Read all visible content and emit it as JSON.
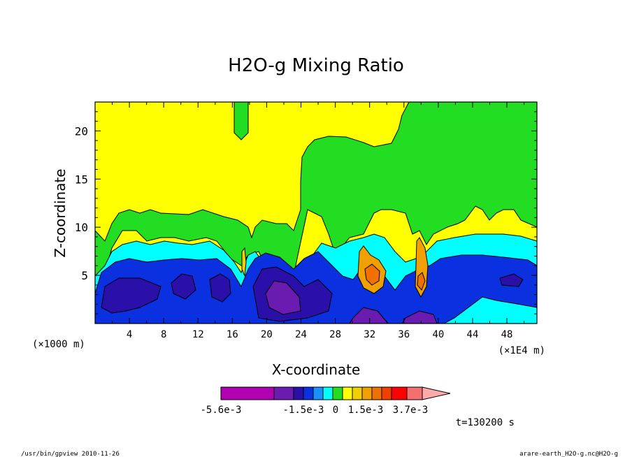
{
  "chart_data": {
    "type": "heatmap",
    "title": "H2O-g Mixing Ratio",
    "xlabel": "X-coordinate",
    "ylabel": "Z-coordinate",
    "x_unit_left": "(×1000 m)",
    "x_unit_right": "(×1E4 m)",
    "xlim": [
      0,
      51.5
    ],
    "ylim": [
      0,
      23
    ],
    "x_ticks": [
      4,
      8,
      12,
      16,
      20,
      24,
      28,
      32,
      36,
      40,
      44,
      48
    ],
    "y_ticks": [
      5,
      10,
      15,
      20
    ],
    "colorbar": {
      "colors": [
        "#b000b0",
        "#6a1bb0",
        "#2a10a8",
        "#0a30e0",
        "#1a90ff",
        "#00ffff",
        "#22dd22",
        "#ffff00",
        "#f0d000",
        "#f0a000",
        "#f07000",
        "#f04000",
        "#ff0000",
        "#f47070",
        "#ffaaaa"
      ],
      "labels": [
        "-5.6e-3",
        "-1.5e-3",
        "0",
        "1.5e-3",
        "3.7e-3"
      ],
      "min": -0.0056,
      "max": 0.0037
    },
    "time_label": "t=130200 s"
  },
  "footer": {
    "left": "/usr/bin/gpview   2010-11-26",
    "right": "arare-earth_H2O-g.nc@H2O-g"
  }
}
